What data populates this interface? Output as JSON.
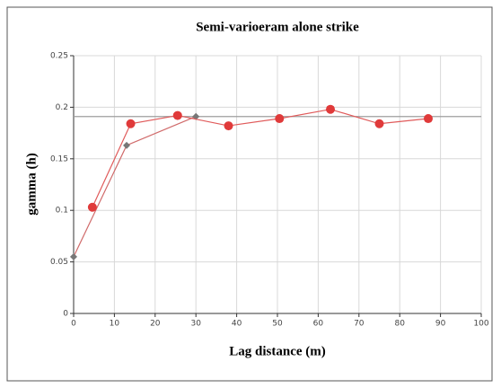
{
  "chart_data": {
    "type": "line",
    "title": "Semi-varioeram alone strike",
    "x_label": "Lag distance (m)",
    "y_label": "gamma (h)",
    "xlim": [
      0,
      100
    ],
    "xticks": [
      0,
      10,
      20,
      30,
      40,
      50,
      60,
      70,
      80,
      90,
      100
    ],
    "ylim": [
      0,
      0.25
    ],
    "yticks": [
      0,
      0.05,
      0.1,
      0.15,
      0.2,
      0.25
    ],
    "grid": true,
    "series": [
      {
        "color": "#9e9e9e",
        "marker": "none",
        "x": [
          0,
          100
        ],
        "values": [
          0.191,
          0.191
        ]
      },
      {
        "color": "#d06a6a",
        "marker": "diamond",
        "marker_color": "#777777",
        "x": [
          0,
          13,
          30
        ],
        "values": [
          0.055,
          0.163,
          0.191
        ]
      },
      {
        "color": "#e05a5a",
        "marker": "circle",
        "marker_color": "#e03a3a",
        "x": [
          4.6,
          14,
          25.5,
          38,
          50.5,
          63,
          75,
          87
        ],
        "values": [
          0.103,
          0.184,
          0.192,
          0.182,
          0.189,
          0.198,
          0.184,
          0.189
        ]
      }
    ]
  }
}
